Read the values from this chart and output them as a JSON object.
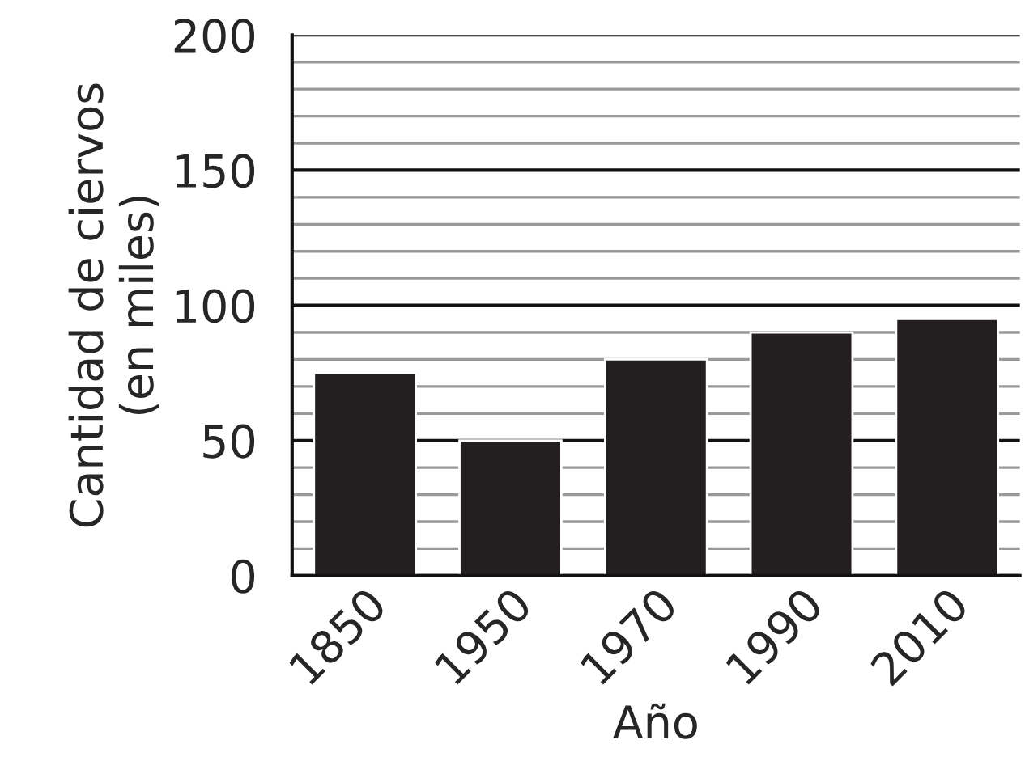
{
  "chart_data": {
    "type": "bar",
    "xlabel": "Año",
    "ylabel": "Cantidad de ciervos\n(en miles)",
    "categories": [
      "1850",
      "1950",
      "1970",
      "1990",
      "2010"
    ],
    "values": [
      75,
      50,
      80,
      90,
      95
    ],
    "color": "#231f20",
    "ylim": [
      0,
      200
    ],
    "yticks": [
      0,
      {
        "value": 10,
        "label": null
      },
      {
        "value": 20,
        "label": null
      },
      {
        "value": 30,
        "label": null
      },
      {
        "value": 40,
        "label": null
      },
      50,
      {
        "value": 60,
        "label": null
      },
      {
        "value": 70,
        "label": null
      },
      {
        "value": 80,
        "label": null
      },
      {
        "value": 90,
        "label": null
      },
      100,
      {
        "value": 110,
        "label": null
      },
      {
        "value": 120,
        "label": null
      },
      {
        "value": 130,
        "label": null
      },
      {
        "value": 140,
        "label": null
      },
      150,
      {
        "value": 160,
        "label": null
      },
      {
        "value": 170,
        "label": null
      },
      {
        "value": 180,
        "label": null
      },
      {
        "value": 190,
        "label": null
      },
      200
    ],
    "grid": "y"
  }
}
